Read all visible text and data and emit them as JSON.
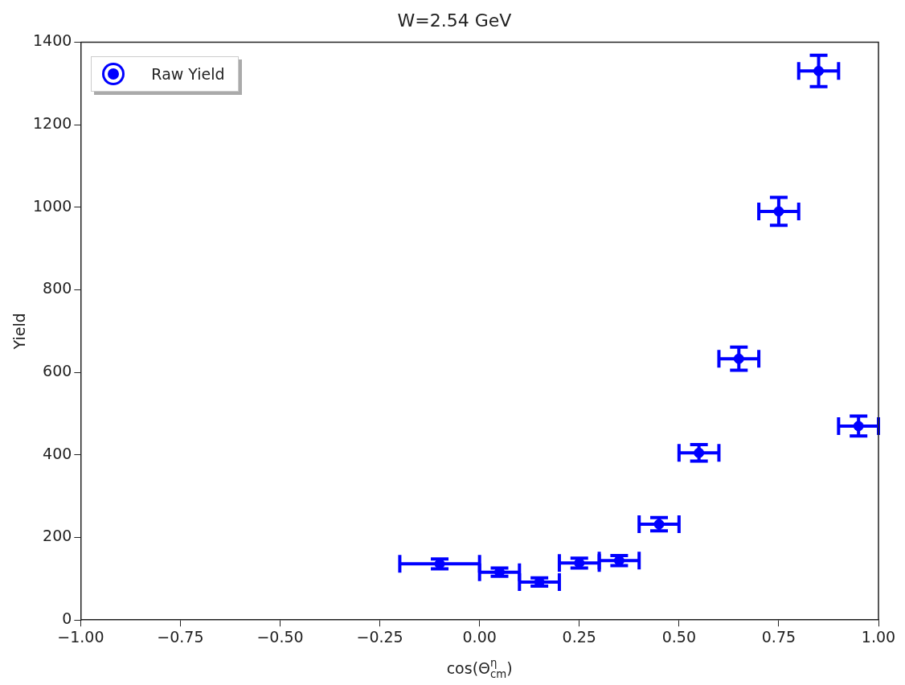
{
  "chart_data": {
    "type": "scatter",
    "title": "W=2.54 GeV",
    "xlabel": "cos(Θ$^{η}$$_{cm}$)",
    "ylabel": "Yield",
    "x": [
      -0.1,
      0.05,
      0.15,
      0.25,
      0.35,
      0.45,
      0.55,
      0.65,
      0.75,
      0.85,
      0.95
    ],
    "series": [
      {
        "name": "Raw Yield",
        "color": "#0000ff",
        "values": [
          136,
          116,
          92,
          138,
          144,
          232,
          405,
          633,
          990,
          1330,
          470
        ],
        "errors": [
          12,
          10,
          10,
          12,
          12,
          16,
          20,
          28,
          34,
          38,
          24
        ],
        "xerrors": [
          0.1,
          0.05,
          0.05,
          0.05,
          0.05,
          0.05,
          0.05,
          0.05,
          0.05,
          0.05,
          0.05
        ]
      }
    ],
    "xlim": [
      -1,
      1
    ],
    "xticks": [
      {
        "value": -1,
        "label": "−1.00"
      },
      {
        "value": -0.75,
        "label": "−0.75"
      },
      {
        "value": -0.5,
        "label": "−0.50"
      },
      {
        "value": -0.25,
        "label": "−0.25"
      },
      {
        "value": 0,
        "label": "0.00"
      },
      {
        "value": 0.25,
        "label": "0.25"
      },
      {
        "value": 0.5,
        "label": "0.50"
      },
      {
        "value": 0.75,
        "label": "0.75"
      },
      {
        "value": 1,
        "label": "1.00"
      }
    ],
    "ylim": [
      0,
      1400
    ],
    "yticks": [
      0,
      200,
      400,
      600,
      800,
      1000,
      1200,
      1400
    ],
    "legend": "top left",
    "marker": "circle",
    "grid": false
  }
}
